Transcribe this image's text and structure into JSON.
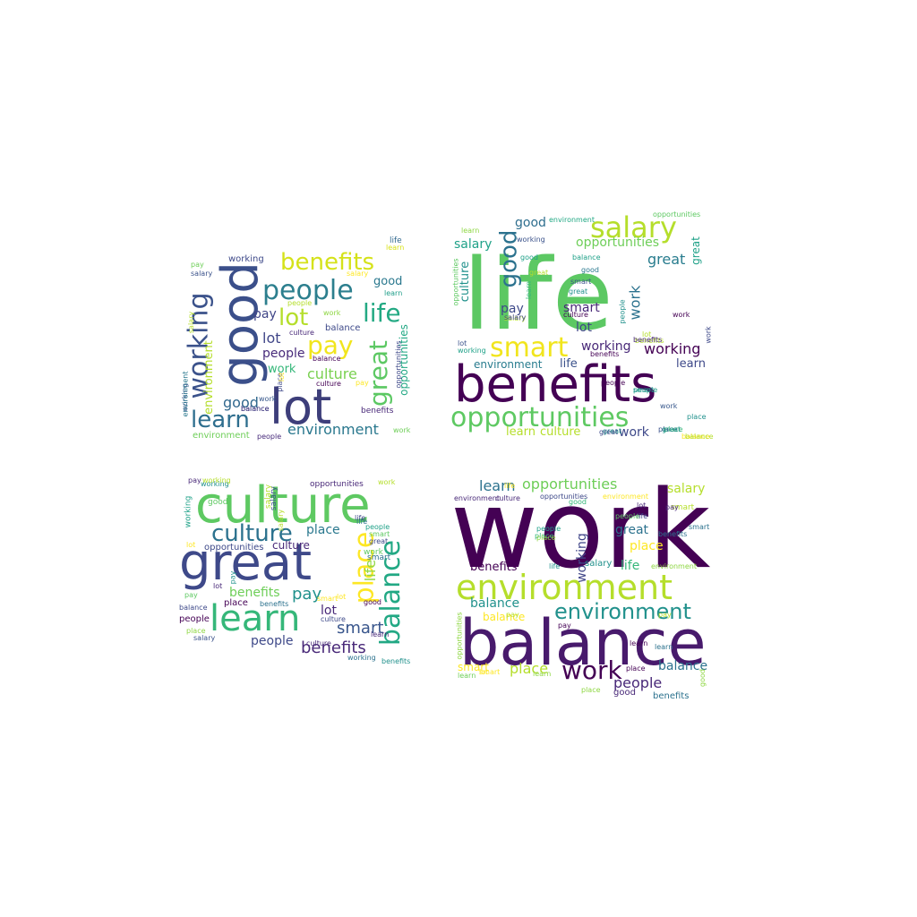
{
  "clouds": [
    {
      "words": [
        {
          "text": "good",
          "color": "#3b4f8a"
        },
        {
          "text": "lot",
          "color": "#3d3e7a"
        },
        {
          "text": "benefits",
          "color": "#d5e21a"
        },
        {
          "text": "people",
          "color": "#2c7f8e"
        },
        {
          "text": "lot",
          "color": "#b5de2b"
        },
        {
          "text": "life",
          "color": "#23a983"
        },
        {
          "text": "pay",
          "color": "#f1e51d"
        },
        {
          "text": "working",
          "color": "#3b528b"
        },
        {
          "text": "learn",
          "color": "#2e6e8e"
        },
        {
          "text": "great",
          "color": "#5cc863"
        },
        {
          "text": "environment",
          "color": "#2a788e"
        },
        {
          "text": "opportunities",
          "color": "#22a884"
        },
        {
          "text": "culture",
          "color": "#7ad151"
        },
        {
          "text": "people",
          "color": "#472a7a"
        },
        {
          "text": "pay",
          "color": "#404688"
        },
        {
          "text": "lot",
          "color": "#404688"
        },
        {
          "text": "work",
          "color": "#35b779"
        },
        {
          "text": "good",
          "color": "#2a788e"
        },
        {
          "text": "good",
          "color": "#31688e"
        },
        {
          "text": "balance",
          "color": "#3e4989"
        },
        {
          "text": "environment",
          "color": "#b5de2b"
        },
        {
          "text": "benefits",
          "color": "#482878"
        },
        {
          "text": "life",
          "color": "#31688e"
        },
        {
          "text": "working",
          "color": "#39568c"
        },
        {
          "text": "pay",
          "color": "#6ece58"
        },
        {
          "text": "salary",
          "color": "#3b528b"
        },
        {
          "text": "learn",
          "color": "#1f9e89"
        },
        {
          "text": "learn",
          "color": "#d8e219"
        },
        {
          "text": "salary",
          "color": "#fde725"
        },
        {
          "text": "people",
          "color": "#b5de2b"
        },
        {
          "text": "work",
          "color": "#8fd744"
        },
        {
          "text": "culture",
          "color": "#482878"
        },
        {
          "text": "balance",
          "color": "#440154"
        },
        {
          "text": "balance",
          "color": "#3e4989"
        },
        {
          "text": "environment",
          "color": "#2a788e"
        },
        {
          "text": "environment",
          "color": "#6ece58"
        },
        {
          "text": "people",
          "color": "#472a7a"
        },
        {
          "text": "work",
          "color": "#38588c"
        },
        {
          "text": "work",
          "color": "#6ece58"
        },
        {
          "text": "place",
          "color": "#3e4989"
        },
        {
          "text": "lot",
          "color": "#fde725"
        },
        {
          "text": "culture",
          "color": "#440154"
        },
        {
          "text": "pay",
          "color": "#fde725"
        },
        {
          "text": "balance",
          "color": "#443983"
        },
        {
          "text": "salary",
          "color": "#b5de2b"
        },
        {
          "text": "working",
          "color": "#3e4989"
        },
        {
          "text": "opportunities",
          "color": "#3e4989"
        }
      ]
    },
    {
      "words": [
        {
          "text": "life",
          "color": "#5cc863"
        },
        {
          "text": "benefits",
          "color": "#440154"
        },
        {
          "text": "opportunities",
          "color": "#5ec962"
        },
        {
          "text": "salary",
          "color": "#b5de2b"
        },
        {
          "text": "smart",
          "color": "#f1e51d"
        },
        {
          "text": "good",
          "color": "#2c728e"
        },
        {
          "text": "culture",
          "color": "#21918c"
        },
        {
          "text": "salary",
          "color": "#1fa188"
        },
        {
          "text": "opportunities",
          "color": "#6ece58"
        },
        {
          "text": "great",
          "color": "#287c8e"
        },
        {
          "text": "great",
          "color": "#1fa188"
        },
        {
          "text": "work",
          "color": "#2c728e"
        },
        {
          "text": "working",
          "color": "#482878"
        },
        {
          "text": "working",
          "color": "#440154"
        },
        {
          "text": "learn",
          "color": "#3e4989"
        },
        {
          "text": "environment",
          "color": "#287c8e"
        },
        {
          "text": "life",
          "color": "#3b528b"
        },
        {
          "text": "pay",
          "color": "#3e4989"
        },
        {
          "text": "smart",
          "color": "#482878"
        },
        {
          "text": "lot",
          "color": "#404688"
        },
        {
          "text": "salary",
          "color": "#b5de2b"
        },
        {
          "text": "good",
          "color": "#2e6e8e"
        },
        {
          "text": "learn",
          "color": "#b5de2b"
        },
        {
          "text": "culture",
          "color": "#b5de2b"
        },
        {
          "text": "work",
          "color": "#3e4989"
        },
        {
          "text": "great",
          "color": "#21918c"
        },
        {
          "text": "place",
          "color": "#3b528b"
        },
        {
          "text": "balance",
          "color": "#fde725"
        },
        {
          "text": "work",
          "color": "#38588c"
        },
        {
          "text": "people",
          "color": "#440154"
        },
        {
          "text": "learn",
          "color": "#8fd744"
        },
        {
          "text": "environment",
          "color": "#22a884"
        },
        {
          "text": "opportunities",
          "color": "#5ec962"
        },
        {
          "text": "working",
          "color": "#3b528b"
        },
        {
          "text": "good",
          "color": "#1fa188"
        },
        {
          "text": "balance",
          "color": "#1fa188"
        },
        {
          "text": "good",
          "color": "#2a788e"
        },
        {
          "text": "great",
          "color": "#b5de2b"
        },
        {
          "text": "great",
          "color": "#21918c"
        },
        {
          "text": "smart",
          "color": "#3b528b"
        },
        {
          "text": "culture",
          "color": "#440154"
        },
        {
          "text": "salary",
          "color": "#404688"
        },
        {
          "text": "learn",
          "color": "#35b779"
        },
        {
          "text": "benefits",
          "color": "#b5de2b"
        },
        {
          "text": "people",
          "color": "#21918c"
        },
        {
          "text": "benefits",
          "color": "#440154"
        },
        {
          "text": "work",
          "color": "#440154"
        },
        {
          "text": "work",
          "color": "#3e4989"
        },
        {
          "text": "lot",
          "color": "#3b528b"
        },
        {
          "text": "working",
          "color": "#1fa188"
        },
        {
          "text": "benefits",
          "color": "#482878"
        },
        {
          "text": "lot",
          "color": "#b5de2b"
        },
        {
          "text": "people",
          "color": "#1fa188"
        },
        {
          "text": "smart",
          "color": "#21918c"
        },
        {
          "text": "place",
          "color": "#21918c"
        },
        {
          "text": "great",
          "color": "#3e4989"
        },
        {
          "text": "opportunities",
          "color": "#5ec962"
        },
        {
          "text": "place",
          "color": "#35b779"
        },
        {
          "text": "great",
          "color": "#21918c"
        },
        {
          "text": "balance",
          "color": "#b5de2b"
        }
      ]
    },
    {
      "words": [
        {
          "text": "culture",
          "color": "#5ec962"
        },
        {
          "text": "great",
          "color": "#3e4989"
        },
        {
          "text": "culture",
          "color": "#2c728e"
        },
        {
          "text": "learn",
          "color": "#35b779"
        },
        {
          "text": "place",
          "color": "#fde725"
        },
        {
          "text": "balance",
          "color": "#22a884"
        },
        {
          "text": "place",
          "color": "#2a788e"
        },
        {
          "text": "life",
          "color": "#8fd744"
        },
        {
          "text": "benefits",
          "color": "#482878"
        },
        {
          "text": "pay",
          "color": "#21918c"
        },
        {
          "text": "smart",
          "color": "#39568c"
        },
        {
          "text": "benefits",
          "color": "#6ece58"
        },
        {
          "text": "people",
          "color": "#3e4989"
        },
        {
          "text": "lot",
          "color": "#482878"
        },
        {
          "text": "culture",
          "color": "#482878"
        },
        {
          "text": "opportunities",
          "color": "#3e4989"
        },
        {
          "text": "salary",
          "color": "#b5de2b"
        },
        {
          "text": "working",
          "color": "#1fa188"
        },
        {
          "text": "opportunities",
          "color": "#482878"
        },
        {
          "text": "work",
          "color": "#5ec962"
        },
        {
          "text": "good",
          "color": "#5ec962"
        },
        {
          "text": "salary",
          "color": "#3b528b"
        },
        {
          "text": "smart",
          "color": "#2c728e"
        },
        {
          "text": "pay",
          "color": "#21918c"
        },
        {
          "text": "working",
          "color": "#21918c"
        },
        {
          "text": "life",
          "color": "#2c728e"
        },
        {
          "text": "lot",
          "color": "#fde725"
        },
        {
          "text": "place",
          "color": "#440154"
        },
        {
          "text": "people",
          "color": "#440154"
        },
        {
          "text": "balance",
          "color": "#3e4989"
        },
        {
          "text": "benefits",
          "color": "#2c728e"
        },
        {
          "text": "culture",
          "color": "#3e4989"
        },
        {
          "text": "people",
          "color": "#1fa188"
        },
        {
          "text": "smart",
          "color": "#5ec962"
        },
        {
          "text": "great",
          "color": "#3e4989"
        },
        {
          "text": "work",
          "color": "#b5de2b"
        },
        {
          "text": "lot",
          "color": "#482878"
        },
        {
          "text": "lot",
          "color": "#fde725"
        },
        {
          "text": "salary",
          "color": "#b5de2b"
        },
        {
          "text": "pay",
          "color": "#482878"
        },
        {
          "text": "working",
          "color": "#b5de2b"
        },
        {
          "text": "learn",
          "color": "#482878"
        },
        {
          "text": "good",
          "color": "#440154"
        },
        {
          "text": "place",
          "color": "#8fd744"
        },
        {
          "text": "working",
          "color": "#2c728e"
        },
        {
          "text": "benefits",
          "color": "#21918c"
        },
        {
          "text": "life",
          "color": "#3e4989"
        },
        {
          "text": "smart",
          "color": "#fde725"
        },
        {
          "text": "pay",
          "color": "#5ec962"
        },
        {
          "text": "culture",
          "color": "#482878"
        },
        {
          "text": "salary",
          "color": "#3b528b"
        }
      ]
    },
    {
      "words": [
        {
          "text": "work",
          "color": "#440154"
        },
        {
          "text": "balance",
          "color": "#481a6c"
        },
        {
          "text": "environment",
          "color": "#b5de2b"
        },
        {
          "text": "environment",
          "color": "#21918c"
        },
        {
          "text": "opportunities",
          "color": "#6ece58"
        },
        {
          "text": "learn",
          "color": "#2c728e"
        },
        {
          "text": "salary",
          "color": "#b5de2b"
        },
        {
          "text": "working",
          "color": "#404688"
        },
        {
          "text": "great",
          "color": "#2c728e"
        },
        {
          "text": "place",
          "color": "#fde725"
        },
        {
          "text": "life",
          "color": "#35b779"
        },
        {
          "text": "salary",
          "color": "#21918c"
        },
        {
          "text": "benefits",
          "color": "#440154"
        },
        {
          "text": "balance",
          "color": "#21918c"
        },
        {
          "text": "balance",
          "color": "#fde725"
        },
        {
          "text": "work",
          "color": "#440154"
        },
        {
          "text": "place",
          "color": "#b5de2b"
        },
        {
          "text": "balance",
          "color": "#2c728e"
        },
        {
          "text": "people",
          "color": "#482878"
        },
        {
          "text": "smart",
          "color": "#fde725"
        },
        {
          "text": "learn",
          "color": "#6ece58"
        },
        {
          "text": "good",
          "color": "#482878"
        },
        {
          "text": "smart",
          "color": "#b5de2b"
        },
        {
          "text": "benefits",
          "color": "#2c728e"
        },
        {
          "text": "place",
          "color": "#35b779"
        },
        {
          "text": "pay",
          "color": "#440154"
        },
        {
          "text": "learn",
          "color": "#440154"
        },
        {
          "text": "environment",
          "color": "#482878"
        },
        {
          "text": "culture",
          "color": "#482878"
        },
        {
          "text": "opportunities",
          "color": "#3e4989"
        },
        {
          "text": "environment",
          "color": "#fde725"
        },
        {
          "text": "life",
          "color": "#fde725"
        },
        {
          "text": "good",
          "color": "#35b779"
        },
        {
          "text": "lot",
          "color": "#482878"
        },
        {
          "text": "pay",
          "color": "#482878"
        },
        {
          "text": "life",
          "color": "#404688"
        },
        {
          "text": "people",
          "color": "#5ec962"
        },
        {
          "text": "people",
          "color": "#1fa188"
        },
        {
          "text": "place",
          "color": "#8fd744"
        },
        {
          "text": "smart",
          "color": "#2c728e"
        },
        {
          "text": "life",
          "color": "#21918c"
        },
        {
          "text": "environment",
          "color": "#8fd744"
        },
        {
          "text": "pay",
          "color": "#b5de2b"
        },
        {
          "text": "learn",
          "color": "#2c728e"
        },
        {
          "text": "place",
          "color": "#440154"
        },
        {
          "text": "learn",
          "color": "#8fd744"
        },
        {
          "text": "smart",
          "color": "#fde725"
        },
        {
          "text": "place",
          "color": "#8fd744"
        },
        {
          "text": "opportunities",
          "color": "#8fd744"
        },
        {
          "text": "good",
          "color": "#8fd744"
        },
        {
          "text": "benefits",
          "color": "#2c728e"
        },
        {
          "text": "pay",
          "color": "#b5de2b"
        },
        {
          "text": "lot",
          "color": "#fde725"
        }
      ]
    }
  ]
}
